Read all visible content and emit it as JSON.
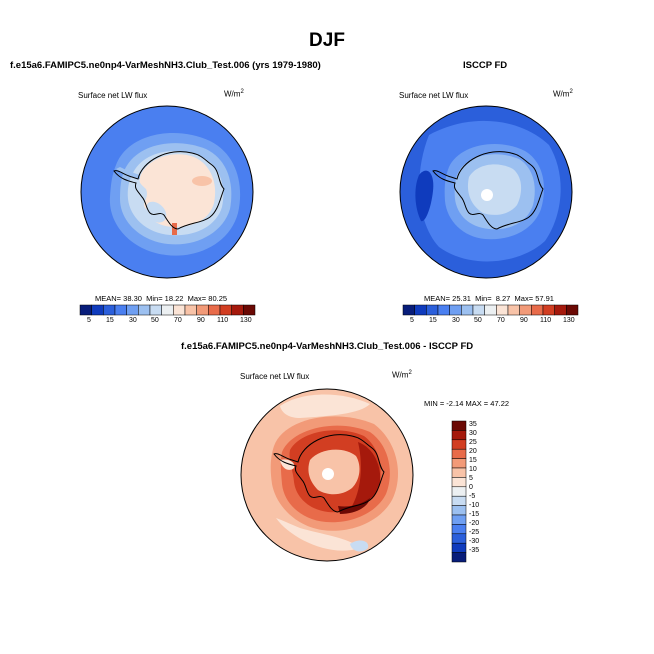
{
  "page": {
    "title": "DJF"
  },
  "colors": {
    "abs_scale": [
      "#081d7a",
      "#0f3bbd",
      "#2b5fdb",
      "#4a7ff0",
      "#6f9ff2",
      "#9cc0f0",
      "#c8dcf2",
      "#ecf0f2",
      "#fbe4d6",
      "#f8c3a8",
      "#f29a78",
      "#e86b4a",
      "#d23e22",
      "#a5190c",
      "#6b0904"
    ],
    "diff_scale": [
      "#081d7a",
      "#0f3bbd",
      "#2b5fdb",
      "#4a7ff0",
      "#6f9ff2",
      "#9cc0f0",
      "#c8dcf2",
      "#ecf0f2",
      "#fbe4d6",
      "#f8c3a8",
      "#f29a78",
      "#e86b4a",
      "#d23e22",
      "#a5190c",
      "#6b0904"
    ]
  },
  "chart_data": [
    {
      "type": "heatmap",
      "id": "model",
      "title": "f.e15a6.FAMIPC5.ne0np4-VarMeshNH3.Club_Test.006 (yrs 1979-1980)",
      "variable": "Surface net LW flux",
      "units": "W/m",
      "units_sup": "2",
      "projection": "south-polar stereographic",
      "region": "Antarctica / Southern Ocean",
      "stats": {
        "mean_label": "MEAN=",
        "mean": "38.30",
        "min_label": "Min=",
        "min": "18.22",
        "max_label": "Max=",
        "max": "80.25"
      },
      "colorbar_levels": [
        "5",
        "15",
        "30",
        "50",
        "70",
        "90",
        "110",
        "130"
      ]
    },
    {
      "type": "heatmap",
      "id": "obs",
      "title": "ISCCP FD",
      "variable": "Surface net LW flux",
      "units": "W/m",
      "units_sup": "2",
      "projection": "south-polar stereographic",
      "region": "Antarctica / Southern Ocean",
      "stats": {
        "mean_label": "MEAN=",
        "mean": "25.31",
        "min_label": "Min=",
        "min": "8.27",
        "max_label": "Max=",
        "max": "57.91"
      },
      "colorbar_levels": [
        "5",
        "15",
        "30",
        "50",
        "70",
        "90",
        "110",
        "130"
      ]
    },
    {
      "type": "heatmap",
      "id": "diff",
      "title": "f.e15a6.FAMIPC5.ne0np4-VarMeshNH3.Club_Test.006 - ISCCP FD",
      "variable": "Surface net LW flux",
      "units": "W/m",
      "units_sup": "2",
      "projection": "south-polar stereographic",
      "region": "Antarctica / Southern Ocean",
      "stats_text": "MIN = -2.14 MAX = 47.22",
      "min": -2.14,
      "max": 47.22,
      "colorbar_levels": [
        "35",
        "30",
        "25",
        "20",
        "15",
        "10",
        "5",
        "0",
        "-5",
        "-10",
        "-15",
        "-20",
        "-25",
        "-30",
        "-35"
      ]
    }
  ]
}
